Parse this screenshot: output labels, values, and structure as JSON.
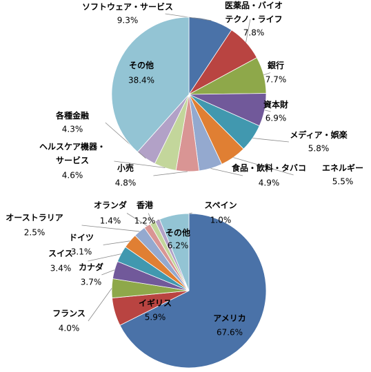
{
  "chart_data": [
    {
      "type": "pie",
      "categories": [
        "ソフトウェア・サービス",
        "医薬品・バイオ\nテクノ・ライフ",
        "銀行",
        "資本財",
        "メディア・娯楽",
        "エネルギー",
        "食品・飲料・タバコ",
        "小売",
        "ヘルスケア機器・\nサービス",
        "各種金融",
        "その他"
      ],
      "values": [
        9.3,
        7.8,
        7.7,
        6.9,
        5.8,
        5.5,
        4.9,
        4.8,
        4.6,
        4.3,
        38.4
      ],
      "value_labels": [
        "9.3%",
        "7.8%",
        "7.7%",
        "6.9%",
        "5.8%",
        "5.5%",
        "4.9%",
        "4.8%",
        "4.6%",
        "4.3%",
        "38.4%"
      ],
      "colors": [
        "#4a72a8",
        "#b94441",
        "#8ea84a",
        "#71599a",
        "#4198af",
        "#e07f33",
        "#94a9cf",
        "#d99594",
        "#c3d69b",
        "#b2a1c7",
        "#93c4d4"
      ]
    },
    {
      "type": "pie",
      "categories": [
        "アメリカ",
        "イギリス",
        "フランス",
        "カナダ",
        "スイス",
        "ドイツ",
        "オーストラリア",
        "オランダ",
        "香港",
        "スペイン",
        "その他"
      ],
      "values": [
        67.6,
        5.9,
        4.0,
        3.7,
        3.4,
        3.1,
        2.5,
        1.4,
        1.2,
        1.0,
        6.2
      ],
      "value_labels": [
        "67.6%",
        "5.9%",
        "4.0%",
        "3.7%",
        "3.4%",
        "3.1%",
        "2.5%",
        "1.4%",
        "1.2%",
        "1.0%",
        "6.2%"
      ],
      "colors": [
        "#4a72a8",
        "#b94441",
        "#8ea84a",
        "#71599a",
        "#4198af",
        "#e07f33",
        "#94a9cf",
        "#d99594",
        "#c3d69b",
        "#b2a1c7",
        "#93c4d4"
      ]
    }
  ]
}
